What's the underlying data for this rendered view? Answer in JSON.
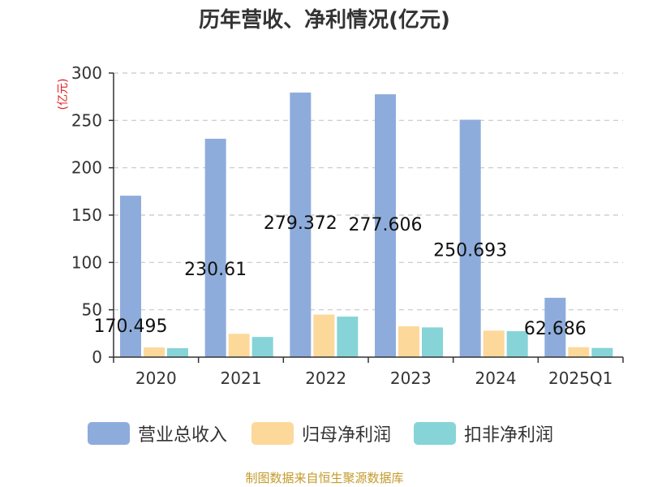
{
  "chart_data": {
    "type": "bar",
    "title": "历年营收、净利情况(亿元)",
    "ylabel": "(亿元)",
    "categories": [
      "2020",
      "2021",
      "2022",
      "2023",
      "2024",
      "2025Q1"
    ],
    "series": [
      {
        "name": "营业总收入",
        "color": "#8eacdb",
        "values": [
          170.495,
          230.61,
          279.372,
          277.606,
          250.693,
          62.686
        ]
      },
      {
        "name": "归母净利润",
        "color": "#fdd89b",
        "values": [
          10.2,
          24.6,
          45.0,
          32.6,
          28.0,
          10.5
        ]
      },
      {
        "name": "扣非净利润",
        "color": "#86d4d7",
        "values": [
          9.5,
          21.3,
          42.8,
          31.4,
          27.4,
          9.7
        ]
      }
    ],
    "data_labels": [
      "170.495",
      "230.61",
      "279.372",
      "277.606",
      "250.693",
      "62.686"
    ],
    "ylim": [
      0,
      300
    ],
    "yticks": [
      0,
      50,
      100,
      150,
      200,
      250,
      300
    ],
    "grid": true,
    "legend_position": "bottom"
  },
  "source": "制图数据来自恒生聚源数据库"
}
